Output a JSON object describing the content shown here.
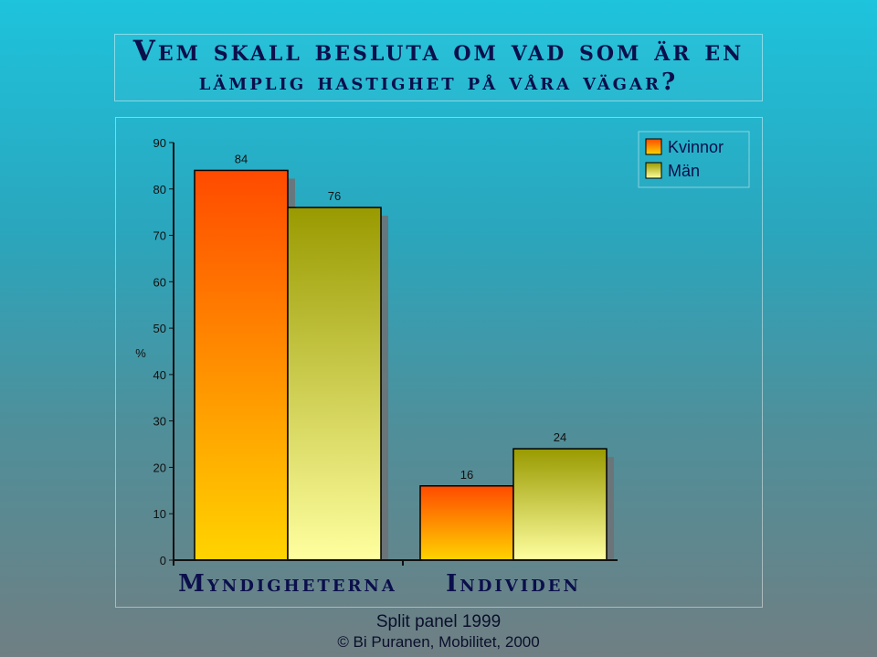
{
  "title": {
    "line1": "Vem skall besluta om vad som är en",
    "line2": "lämplig hastighet på våra vägar?"
  },
  "chart_data": {
    "type": "bar",
    "ylabel": "%",
    "ylim": [
      0,
      90
    ],
    "yticks": [
      0,
      10,
      20,
      30,
      40,
      50,
      60,
      70,
      80,
      90
    ],
    "categories": [
      "Myndigheterna",
      "Individen"
    ],
    "series": [
      {
        "name": "Kvinnor",
        "values": [
          84,
          16
        ]
      },
      {
        "name": "Män",
        "values": [
          76,
          24
        ]
      }
    ],
    "legend_position": "top-right",
    "grid": false
  },
  "colors": {
    "kvinnor_top": "#ff4a00",
    "kvinnor_bottom": "#ffd400",
    "man_top": "#999a00",
    "man_bottom": "#ffffa0"
  },
  "footer": {
    "line1": "Split panel 1999",
    "line2": "© Bi Puranen, Mobilitet, 2000"
  }
}
